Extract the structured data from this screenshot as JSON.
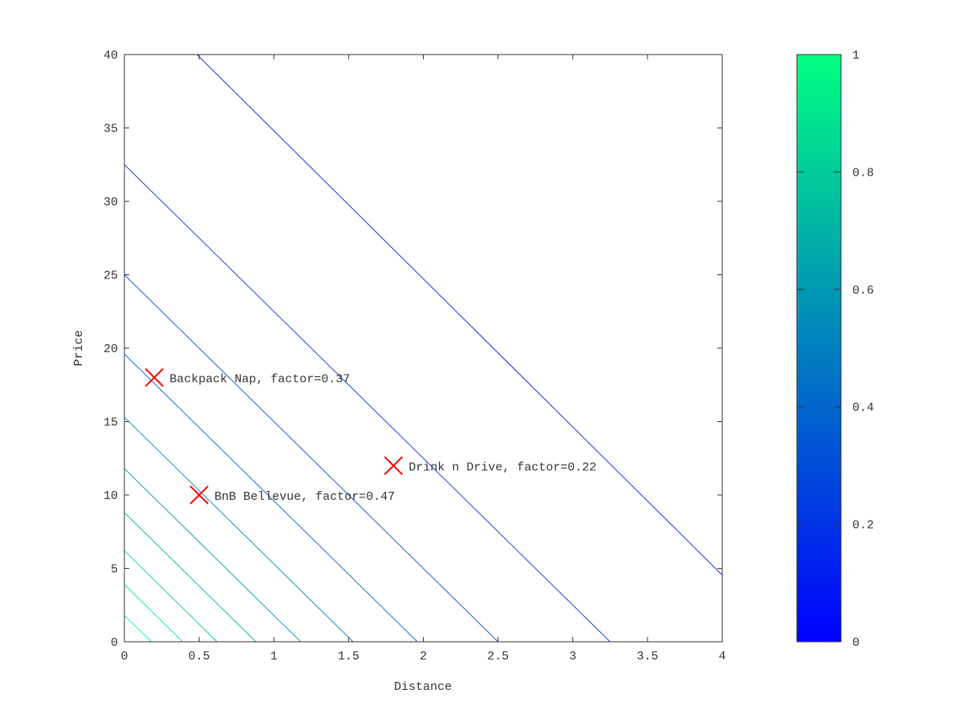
{
  "chart_data": {
    "type": "contour",
    "xlabel": "Distance",
    "ylabel": "Price",
    "xlim": [
      0,
      4
    ],
    "ylim": [
      0,
      40
    ],
    "xticks": [
      "0",
      "0.5",
      "1",
      "1.5",
      "2",
      "2.5",
      "3",
      "3.5",
      "4"
    ],
    "yticks": [
      "0",
      "5",
      "10",
      "15",
      "20",
      "25",
      "30",
      "35",
      "40"
    ],
    "grid": false,
    "colormap": {
      "low": "#0000ff",
      "high": "#00ff80"
    },
    "colorbar": {
      "range": [
        0,
        1
      ],
      "ticks": [
        "0",
        "0.2",
        "0.4",
        "0.6",
        "0.8",
        "1"
      ],
      "placement": "right"
    },
    "contours": [
      {
        "level": 0.1,
        "price_intercept": 44.9,
        "distance_intercept": 4.45
      },
      {
        "level": 0.2,
        "price_intercept": 32.5,
        "distance_intercept": 3.25
      },
      {
        "level": 0.3,
        "price_intercept": 25.0,
        "distance_intercept": 2.5
      },
      {
        "level": 0.4,
        "price_intercept": 19.6,
        "distance_intercept": 1.96
      },
      {
        "level": 0.5,
        "price_intercept": 15.3,
        "distance_intercept": 1.53
      },
      {
        "level": 0.6,
        "price_intercept": 11.8,
        "distance_intercept": 1.18
      },
      {
        "level": 0.7,
        "price_intercept": 8.8,
        "distance_intercept": 0.88
      },
      {
        "level": 0.8,
        "price_intercept": 6.2,
        "distance_intercept": 0.62
      },
      {
        "level": 0.9,
        "price_intercept": 3.9,
        "distance_intercept": 0.39
      },
      {
        "level": 1.0,
        "price_intercept": 1.8,
        "distance_intercept": 0.18
      }
    ],
    "points": [
      {
        "x": 0.2,
        "y": 18,
        "label": "Backpack Nap, factor=0.37"
      },
      {
        "x": 0.5,
        "y": 10,
        "label": "BnB Bellevue, factor=0.47"
      },
      {
        "x": 1.8,
        "y": 12,
        "label": "Drink n Drive, factor=0.22"
      }
    ],
    "marker_color": "#ff0000"
  }
}
